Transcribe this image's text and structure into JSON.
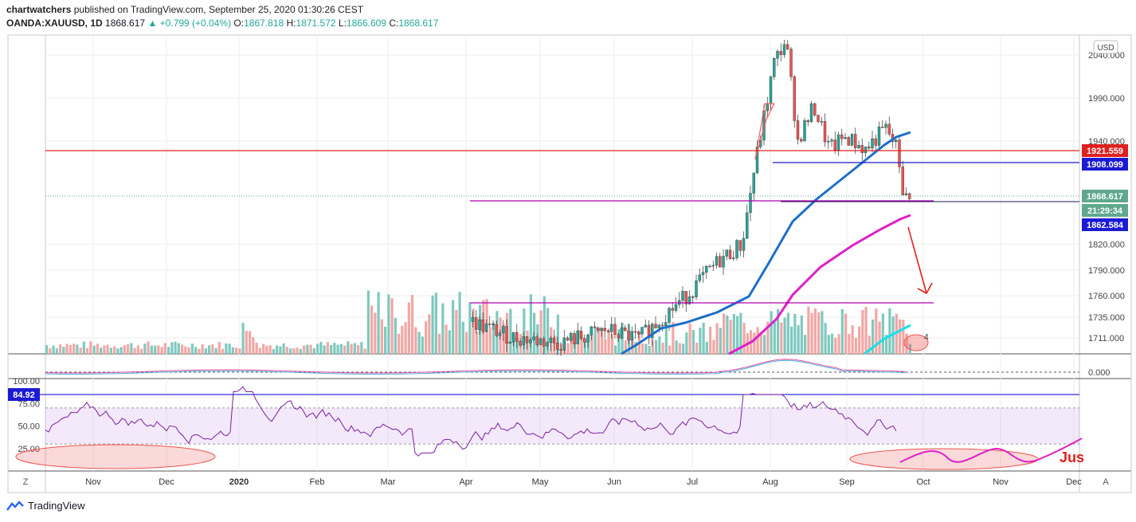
{
  "header": {
    "author": "chartwatchers",
    "published_text": "published on TradingView.com, September 25, 2020 01:30:26 CEST",
    "symbol": "OANDA:XAUUSD, 1D",
    "last": "1868.617",
    "change": "+0.799 (+0.04%)",
    "o_label": "O:",
    "o": "1867.818",
    "h_label": "H:",
    "h": "1871.572",
    "l_label": "L:",
    "l": "1866.609",
    "c_label": "C:",
    "c": "1868.617"
  },
  "chart_data": [
    {
      "type": "candlestick",
      "currency": "USD",
      "y_ticks": [
        "2040.000",
        "1990.000",
        "1940.000",
        "1820.000",
        "1790.000",
        "1760.000",
        "1735.000",
        "1711.000"
      ],
      "x_ticks": [
        "Nov",
        "Dec",
        "2020",
        "Feb",
        "Mar",
        "Apr",
        "May",
        "Jun",
        "Jul",
        "Aug",
        "Sep",
        "Oct",
        "Nov",
        "Dec"
      ],
      "price_labels": [
        {
          "value": "1921.559",
          "color": "#e0201f"
        },
        {
          "value": "1908.099",
          "color": "#1b1bd3"
        },
        {
          "value": "1868.617",
          "color": "#5fa88e"
        },
        {
          "value": "21:29:34",
          "color": "#5fa88e"
        },
        {
          "value": "1862.584",
          "color": "#1b1bd3"
        }
      ],
      "macd_tick": "0.000",
      "annotation_text": "4"
    },
    {
      "type": "line",
      "name": "RSI",
      "y_ticks": [
        "100.00",
        "75.00",
        "50.00",
        "25.00"
      ],
      "level_label": "84.92",
      "annotation_text": "Jus"
    }
  ],
  "ui": {
    "z_button": "Z",
    "a_button": "A",
    "brand": "TradingView",
    "currency_button": "USD"
  },
  "colors": {
    "up": "#26a69a",
    "down": "#ef5350",
    "ma_blue": "#1e6fc8",
    "ma_magenta": "#e020c8",
    "resistance_red": "#e0201f",
    "level_blue": "#1b1bd3",
    "rsi": "#7b1fa2"
  }
}
